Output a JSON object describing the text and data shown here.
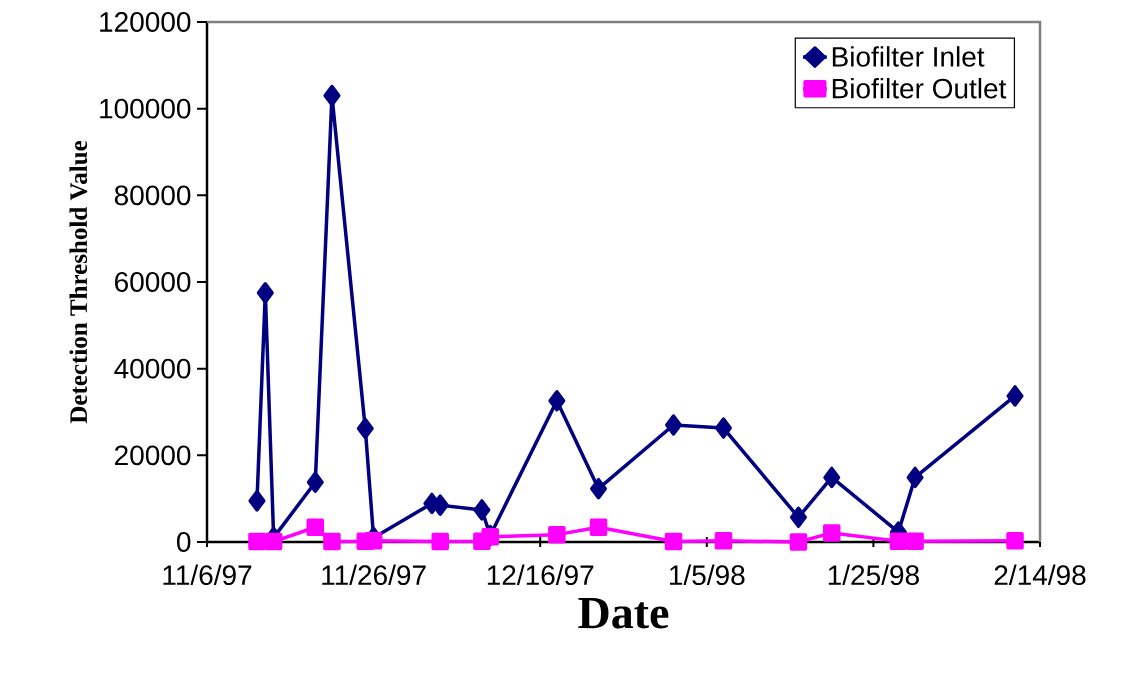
{
  "chart_data": {
    "type": "line",
    "xlabel": "Date",
    "ylabel": "Detection Threshold Value",
    "x": [
      "1997-11-12",
      "1997-11-13",
      "1997-11-14",
      "1997-11-19",
      "1997-11-21",
      "1997-11-25",
      "1997-11-26",
      "1997-12-03",
      "1997-12-04",
      "1997-12-09",
      "1997-12-10",
      "1997-12-18",
      "1997-12-23",
      "1998-01-01",
      "1998-01-07",
      "1998-01-16",
      "1998-01-20",
      "1998-01-28",
      "1998-01-30",
      "1998-02-11"
    ],
    "series": [
      {
        "name": "Biofilter Inlet",
        "color": "#000080",
        "marker": "diamond",
        "values": [
          9500,
          57500,
          1000,
          13800,
          103000,
          26200,
          1000,
          8900,
          8500,
          7400,
          1500,
          32600,
          12300,
          27000,
          26300,
          5700,
          14900,
          2300,
          14900,
          33700
        ]
      },
      {
        "name": "Biofilter Outlet",
        "color": "#ff00ff",
        "marker": "square",
        "values": [
          100,
          null,
          100,
          3400,
          100,
          200,
          300,
          null,
          100,
          200,
          1200,
          1700,
          3400,
          100,
          300,
          0,
          2100,
          200,
          200,
          300
        ]
      }
    ],
    "xlim": [
      "1997-11-06",
      "1998-02-14"
    ],
    "xticks": [
      {
        "value": "1997-11-06",
        "label": "11/6/97"
      },
      {
        "value": "1997-11-26",
        "label": "11/26/97"
      },
      {
        "value": "1997-12-16",
        "label": "12/16/97"
      },
      {
        "value": "1998-01-05",
        "label": "1/5/98"
      },
      {
        "value": "1998-01-25",
        "label": "1/25/98"
      },
      {
        "value": "1998-02-14",
        "label": "2/14/98"
      }
    ],
    "ylim": [
      0,
      120000
    ],
    "yticks": [
      0,
      20000,
      40000,
      60000,
      80000,
      100000,
      120000
    ],
    "legend": "top right",
    "grid": false
  }
}
